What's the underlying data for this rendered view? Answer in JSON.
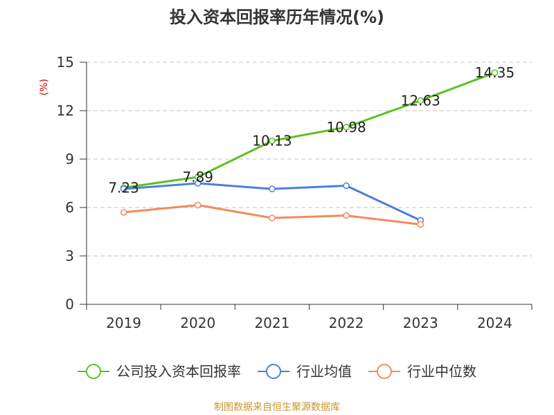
{
  "chart_data": {
    "type": "line",
    "title": "投入资本回报率历年情况(%)",
    "unit": "(%)",
    "categories": [
      "2019",
      "2020",
      "2021",
      "2022",
      "2023",
      "2024"
    ],
    "ylim": [
      0,
      15
    ],
    "yticks": [
      0,
      3,
      6,
      9,
      12,
      15
    ],
    "grid": true,
    "legend_position": "bottom",
    "series": [
      {
        "name": "公司投入资本回报率",
        "color": "#5ac121",
        "values": [
          7.23,
          7.89,
          10.13,
          10.98,
          12.63,
          14.35
        ],
        "labels": [
          "7.23",
          "7.89",
          "10.13",
          "10.98",
          "12.63",
          "14.35"
        ]
      },
      {
        "name": "行业均值",
        "color": "#4a7fdc",
        "values": [
          7.15,
          7.5,
          7.15,
          7.35,
          5.2,
          null
        ]
      },
      {
        "name": "行业中位数",
        "color": "#f4895a",
        "values": [
          5.7,
          6.15,
          5.35,
          5.5,
          4.95,
          null
        ]
      }
    ],
    "source": "制图数据来自恒生聚源数据库"
  }
}
